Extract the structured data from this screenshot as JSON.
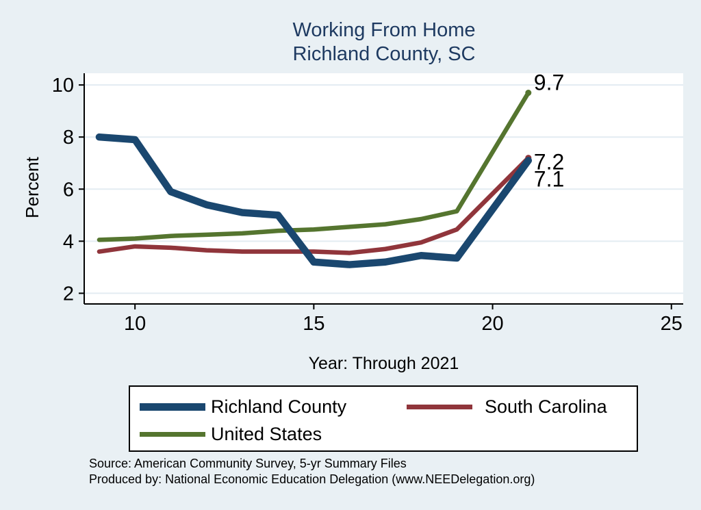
{
  "title": {
    "line1": "Working From Home",
    "line2": "Richland County, SC"
  },
  "axes": {
    "ylabel": "Percent",
    "xlabel": "Year: Through 2021"
  },
  "chart_data": {
    "type": "line",
    "title": "Working From Home Richland County, SC",
    "xlabel": "Year: Through 2021",
    "ylabel": "Percent",
    "x": [
      9,
      10,
      11,
      12,
      13,
      14,
      15,
      16,
      17,
      18,
      19,
      21
    ],
    "series": [
      {
        "name": "Richland County",
        "color": "#1a476f",
        "width": 10.5,
        "values": [
          8.0,
          7.9,
          5.9,
          5.4,
          5.1,
          5.0,
          3.2,
          3.1,
          3.2,
          3.45,
          3.35,
          7.1
        ],
        "end_label": "7.1"
      },
      {
        "name": "South Carolina",
        "color": "#90353b",
        "width": 6.5,
        "values": [
          3.6,
          3.8,
          3.75,
          3.65,
          3.6,
          3.6,
          3.6,
          3.55,
          3.7,
          3.95,
          4.45,
          7.2
        ],
        "end_label": "7.2"
      },
      {
        "name": "United States",
        "color": "#55752f",
        "width": 6.5,
        "values": [
          4.05,
          4.1,
          4.2,
          4.25,
          4.3,
          4.4,
          4.45,
          4.55,
          4.65,
          4.85,
          5.15,
          9.7
        ],
        "end_label": "9.7"
      }
    ],
    "x_ticks": [
      10,
      15,
      20,
      25
    ],
    "y_ticks": [
      2,
      4,
      6,
      8,
      10
    ],
    "xlim": [
      8.58,
      25.33
    ],
    "ylim": [
      1.59,
      10.45
    ],
    "grid": "horizontal",
    "legend_position": "below",
    "plot_bg": "#ffffff",
    "page_bg": "#e9f0f4",
    "gridline_color": "#e3ecf2"
  },
  "legend": {
    "items": [
      {
        "label": "Richland County",
        "color": "#1a476f"
      },
      {
        "label": "South Carolina",
        "color": "#90353b"
      },
      {
        "label": "United States",
        "color": "#55752f"
      }
    ]
  },
  "footer": {
    "line1": "Source: American Community Survey, 5-yr Summary Files",
    "line2": "Produced by: National Economic Education Delegation (www.NEEDelegation.org)"
  }
}
